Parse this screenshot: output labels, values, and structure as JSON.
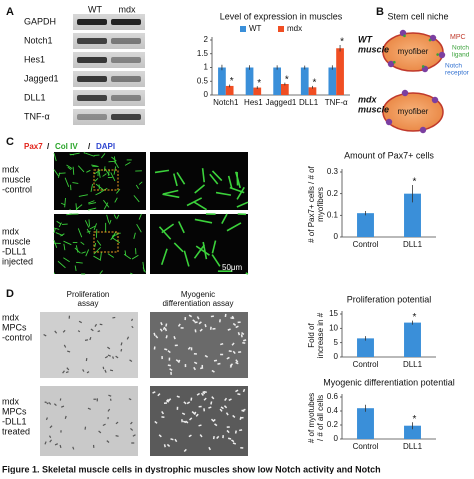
{
  "panels": {
    "a": {
      "label": "A",
      "lanes": [
        "WT",
        "mdx"
      ],
      "rows": [
        "GAPDH",
        "Notch1",
        "Hes1",
        "Jagged1",
        "DLL1",
        "TNF-α"
      ]
    },
    "b": {
      "label": "B",
      "title": "Stem cell niche",
      "wt": [
        "WT",
        "muscle"
      ],
      "mdx": [
        "mdx",
        "muscle"
      ],
      "fiber": "myofiber",
      "mpc": "MPC",
      "ligand": [
        "Notch",
        "ligand"
      ],
      "receptor": [
        "Notch",
        "receptor"
      ]
    },
    "c": {
      "label": "C",
      "stains": [
        "Pax7",
        "/",
        "Col IV",
        "/",
        "DAPI"
      ],
      "control": [
        "mdx",
        "muscle",
        "-control"
      ],
      "treated": [
        "mdx",
        "muscle",
        "-DLL1",
        "injected"
      ],
      "scale": "50μm"
    },
    "d": {
      "label": "D",
      "prolif": [
        "Proliferation",
        "assay"
      ],
      "diff": [
        "Myogenic",
        "differentiation assay"
      ],
      "control": [
        "mdx",
        "MPCs",
        "-control"
      ],
      "treated": [
        "mdx",
        "MPCs",
        "-DLL1",
        "treated"
      ]
    }
  },
  "chart_data": [
    {
      "type": "bar",
      "title": "Level of expression in muscles",
      "categories": [
        "Notch1",
        "Hes1",
        "Jagged1",
        "DLL1",
        "TNF-α"
      ],
      "series": [
        {
          "name": "WT",
          "color": "#3a8fd9",
          "values": [
            1,
            1,
            1,
            1,
            1
          ],
          "errors": [
            0.1,
            0.08,
            0.08,
            0.07,
            0.08
          ],
          "significance": [
            null,
            null,
            null,
            null,
            null
          ]
        },
        {
          "name": "mdx",
          "color": "#f04e23",
          "values": [
            0.33,
            0.27,
            0.4,
            0.28,
            1.7
          ],
          "errors": [
            0.05,
            0.05,
            0.05,
            0.05,
            0.12
          ],
          "significance": [
            "*",
            "*",
            "*",
            "*",
            "*"
          ]
        }
      ],
      "ylim": [
        0,
        2
      ],
      "yticks": [
        0,
        0.5,
        1,
        1.5,
        2
      ]
    },
    {
      "type": "bar",
      "title": "Amount of Pax7+ cells",
      "ylabel": [
        "# of Pax7+ cells / # of",
        "myofibers"
      ],
      "categories": [
        "Control",
        "DLL1"
      ],
      "values": [
        0.11,
        0.2
      ],
      "errors": [
        0.01,
        0.04
      ],
      "significance": [
        null,
        "*"
      ],
      "color": "#3a8fd9",
      "ylim": [
        0,
        0.3
      ],
      "yticks": [
        0,
        0.1,
        0.2,
        0.3
      ]
    },
    {
      "type": "bar",
      "title": "Proliferation potential",
      "ylabel": [
        "Fold of",
        "increase in #"
      ],
      "categories": [
        "Control",
        "DLL1"
      ],
      "values": [
        6.5,
        12
      ],
      "errors": [
        0.8,
        0.7
      ],
      "significance": [
        null,
        "*"
      ],
      "color": "#3a8fd9",
      "ylim": [
        0,
        15
      ],
      "yticks": [
        0,
        5,
        10,
        15
      ]
    },
    {
      "type": "bar",
      "title": "Myogenic differentiation potential",
      "ylabel": [
        "# of myotubes",
        "/ # of all cells"
      ],
      "categories": [
        "Control",
        "DLL1"
      ],
      "values": [
        0.44,
        0.19
      ],
      "errors": [
        0.05,
        0.05
      ],
      "significance": [
        null,
        "*"
      ],
      "color": "#3a8fd9",
      "ylim": [
        0,
        0.6
      ],
      "yticks": [
        0,
        0.2,
        0.4,
        0.6
      ]
    }
  ],
  "caption": "Figure 1. Skeletal muscle cells in dystrophic muscles show low Notch activity and Notch"
}
